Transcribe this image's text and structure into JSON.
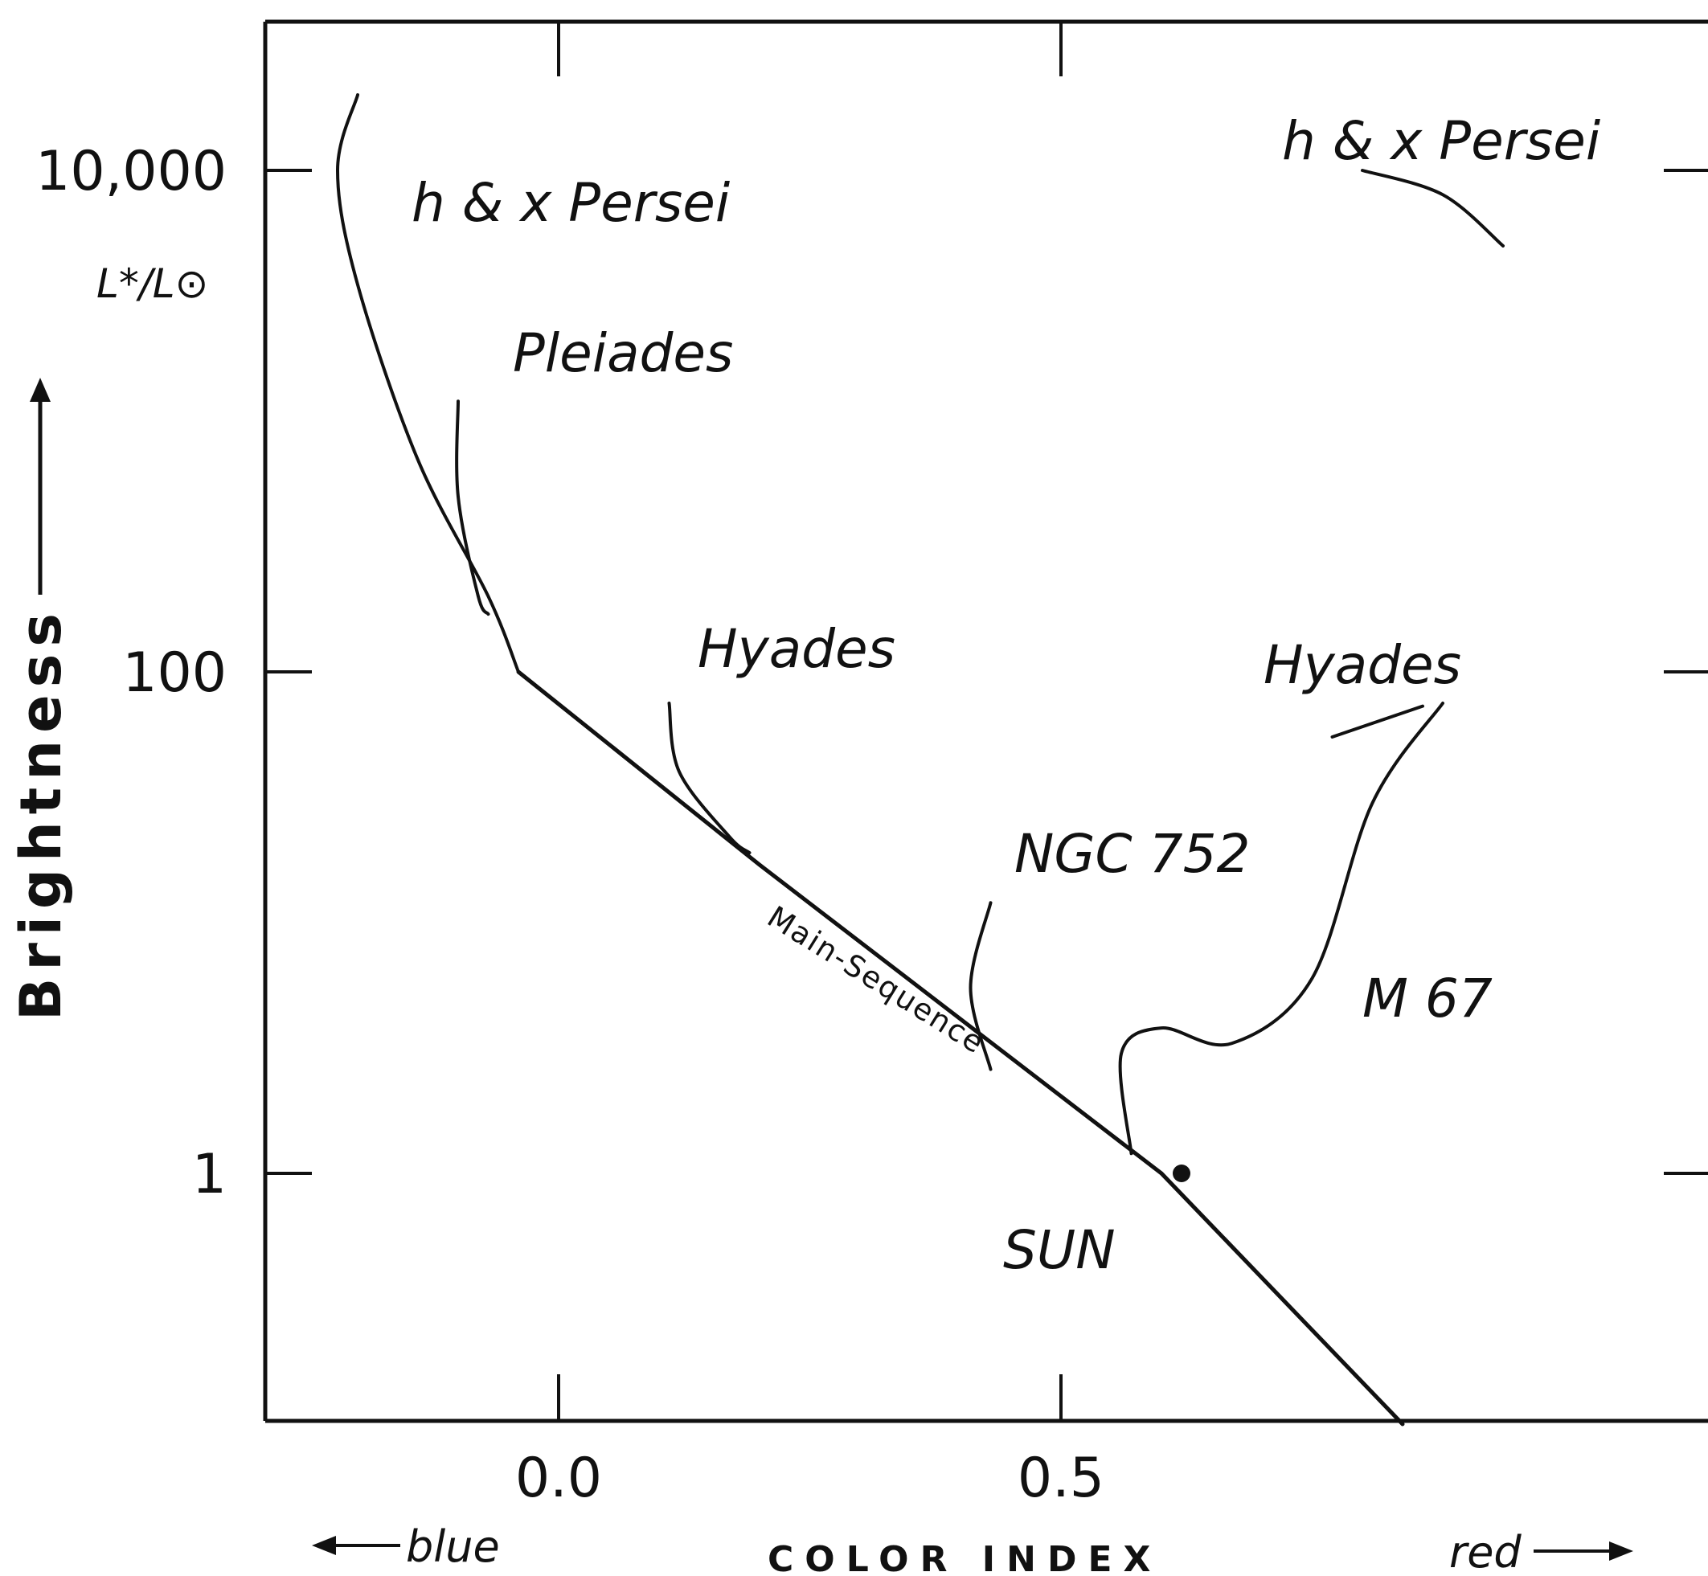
{
  "chart_data": {
    "type": "line",
    "title": "",
    "xlabel": "COLOR INDEX",
    "ylabel": "Brightness",
    "ylabel_units": "L*/L⊙",
    "x_direction_labels": {
      "left": "blue",
      "right": "red"
    },
    "xlim": [
      -0.29,
      1.15
    ],
    "ylim_log10": [
      -1.0,
      4.6
    ],
    "y_scale": "log",
    "x_ticks": [
      {
        "value": 0.0,
        "label": "0.0"
      },
      {
        "value": 0.5,
        "label": "0.5"
      }
    ],
    "y_ticks": [
      {
        "value": 10000,
        "label": "10,000"
      },
      {
        "value": 100,
        "label": "100"
      },
      {
        "value": 1,
        "label": "1"
      }
    ],
    "main_sequence": {
      "name": "Main-Sequence",
      "points": [
        [
          -0.04,
          100
        ],
        [
          0.2,
          17
        ],
        [
          0.6,
          1
        ],
        [
          0.84,
          0.1
        ]
      ]
    },
    "series": [
      {
        "name": "h & x Persei",
        "points": [
          [
            -0.2,
            20000
          ],
          [
            -0.22,
            10000
          ],
          [
            -0.2,
            3500
          ],
          [
            -0.14,
            700
          ],
          [
            -0.07,
            200
          ],
          [
            -0.04,
            100
          ]
        ]
      },
      {
        "name": "h & x Persei",
        "points": [
          [
            0.8,
            10000
          ],
          [
            0.88,
            8000
          ],
          [
            0.94,
            5000
          ]
        ]
      },
      {
        "name": "Pleiades",
        "points": [
          [
            -0.1,
            1200
          ],
          [
            -0.1,
            500
          ],
          [
            -0.08,
            200
          ],
          [
            -0.07,
            170
          ]
        ]
      },
      {
        "name": "Hyades",
        "points": [
          [
            0.11,
            75
          ],
          [
            0.12,
            40
          ],
          [
            0.17,
            22
          ],
          [
            0.19,
            19
          ]
        ]
      },
      {
        "name": "Hyades",
        "points": [
          [
            0.77,
            55
          ],
          [
            0.86,
            73
          ]
        ]
      },
      {
        "name": "NGC 752",
        "points": [
          [
            0.43,
            12
          ],
          [
            0.41,
            5.5
          ],
          [
            0.43,
            2.6
          ]
        ]
      },
      {
        "name": "M 67",
        "points": [
          [
            0.57,
            1.2
          ],
          [
            0.56,
            3
          ],
          [
            0.6,
            3.8
          ],
          [
            0.67,
            3.3
          ],
          [
            0.75,
            6
          ],
          [
            0.81,
            30
          ],
          [
            0.88,
            75
          ]
        ]
      }
    ],
    "points": [
      {
        "name": "SUN",
        "x": 0.62,
        "y": 1
      }
    ],
    "labels": {
      "persei_left": "h & x Persei",
      "persei_right": "h & x Persei",
      "pleiades": "Pleiades",
      "hyades_left": "Hyades",
      "hyades_right": "Hyades",
      "ngc752": "NGC 752",
      "m67": "M 67",
      "sun": "SUN",
      "main_sequence": "Main-Sequence"
    },
    "grid": false,
    "legend": "none"
  }
}
